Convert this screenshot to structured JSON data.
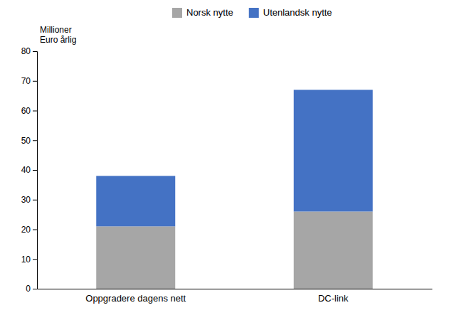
{
  "chart_data": {
    "type": "bar",
    "stacked": true,
    "ylabel": [
      "Millioner",
      "Euro årlig"
    ],
    "categories": [
      "Oppgradere dagens nett",
      "DC-link"
    ],
    "series": [
      {
        "name": "Norsk nytte",
        "color": "#a6a6a6",
        "values": [
          21,
          26
        ]
      },
      {
        "name": "Utenlandsk nytte",
        "color": "#4472c4",
        "values": [
          17,
          41
        ]
      }
    ],
    "ylim": [
      0,
      80
    ],
    "yticks": [
      0,
      10,
      20,
      30,
      40,
      50,
      60,
      70,
      80
    ],
    "grid": false,
    "legend": "top"
  }
}
